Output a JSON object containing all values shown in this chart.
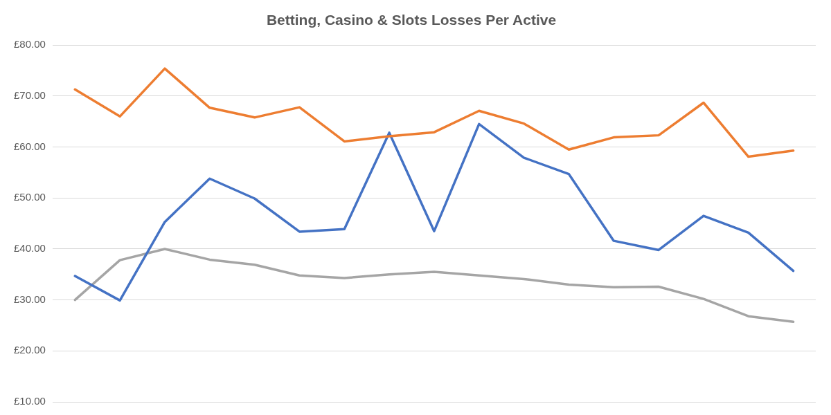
{
  "chart_data": {
    "type": "line",
    "title": "Betting, Casino & Slots Losses Per Active",
    "categories": [
      null,
      null,
      null,
      null,
      null,
      null,
      null,
      null,
      null,
      null,
      null,
      null,
      null,
      null,
      null,
      null,
      null
    ],
    "series": [
      {
        "color": "#ed7d31",
        "values": [
          71.3,
          66.0,
          75.4,
          67.7,
          65.8,
          67.8,
          61.1,
          62.1,
          62.9,
          67.1,
          64.6,
          59.5,
          61.9,
          62.3,
          68.7,
          58.1,
          59.3
        ]
      },
      {
        "color": "#4472c4",
        "values": [
          34.7,
          29.9,
          45.3,
          53.8,
          49.9,
          43.4,
          43.9,
          62.8,
          43.5,
          64.5,
          57.9,
          54.7,
          41.6,
          39.8,
          46.5,
          43.2,
          35.7
        ]
      },
      {
        "color": "#a5a5a5",
        "values": [
          30.0,
          37.8,
          40.0,
          37.9,
          36.9,
          34.8,
          34.3,
          35.0,
          35.5,
          34.8,
          34.1,
          33.0,
          32.5,
          32.6,
          30.2,
          26.8,
          25.7
        ]
      }
    ],
    "ylim": [
      10,
      80
    ],
    "yticks": [
      {
        "value": 10,
        "label": "£10.00"
      },
      {
        "value": 20,
        "label": "£20.00"
      },
      {
        "value": 30,
        "label": "£30.00"
      },
      {
        "value": 40,
        "label": "£40.00"
      },
      {
        "value": 50,
        "label": "£50.00"
      },
      {
        "value": 60,
        "label": "£60.00"
      },
      {
        "value": 70,
        "label": "£70.00"
      },
      {
        "value": 80,
        "label": "£80.00"
      }
    ],
    "grid": "y",
    "legend": false,
    "tick_labels": "y",
    "marker": "none",
    "line_style": "solid"
  }
}
